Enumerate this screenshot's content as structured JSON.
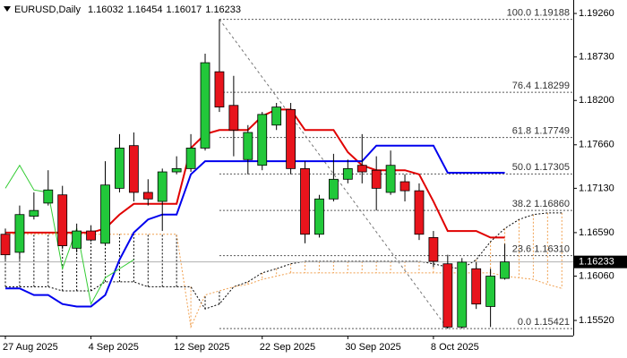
{
  "chart_data": {
    "type": "candlestick",
    "title": "EURUSD,Daily",
    "categories": [
      "27 Aug 2025",
      null,
      null,
      null,
      null,
      null,
      "4 Sep 2025",
      null,
      null,
      null,
      null,
      null,
      "12 Sep 2025",
      null,
      null,
      null,
      null,
      null,
      "22 Sep 2025",
      null,
      null,
      null,
      null,
      null,
      "30 Sep 2025",
      null,
      null,
      null,
      null,
      null,
      "8 Oct 2025",
      null,
      null,
      null,
      null,
      null,
      null,
      null,
      null,
      null
    ],
    "open": [
      1.1657,
      1.1635,
      1.1679,
      1.1695,
      1.1705,
      1.164,
      1.1661,
      1.1646,
      1.1713,
      1.1765,
      1.1708,
      1.1697,
      1.1733,
      1.1737,
      1.1762,
      1.1855,
      1.1814,
      1.1748,
      1.1741,
      1.179,
      1.1809,
      1.1737,
      1.1657,
      1.17,
      1.1724,
      1.1741,
      1.1735,
      1.1708,
      1.1721,
      1.171,
      1.1653,
      1.1621,
      1.1544,
      1.1615,
      1.1569,
      1.16032,
      null,
      null,
      null,
      null
    ],
    "high": [
      1.1664,
      1.1692,
      1.1708,
      1.1735,
      1.1716,
      1.167,
      1.1668,
      1.1746,
      1.1779,
      1.1781,
      1.1724,
      1.1737,
      1.1752,
      1.1779,
      1.1877,
      1.1919,
      1.185,
      1.179,
      1.1806,
      1.1817,
      1.1817,
      1.1746,
      1.1705,
      1.1755,
      1.1748,
      1.1779,
      1.1752,
      1.1759,
      1.173,
      1.1719,
      1.1661,
      1.1632,
      1.1628,
      1.1623,
      1.1615,
      1.16454,
      null,
      null,
      null,
      null
    ],
    "low": [
      1.1626,
      1.1626,
      1.1675,
      1.1692,
      1.1639,
      1.1635,
      1.1648,
      1.1643,
      1.1708,
      1.1697,
      1.1692,
      1.1661,
      1.173,
      1.1733,
      1.1759,
      1.1806,
      1.1752,
      1.173,
      1.1735,
      1.1784,
      1.173,
      1.1646,
      1.1653,
      1.1697,
      1.1719,
      1.1719,
      1.1686,
      1.1705,
      1.1697,
      1.165,
      1.1617,
      1.1542,
      1.1542,
      1.1566,
      1.1544,
      1.16017,
      null,
      null,
      null,
      null
    ],
    "close": [
      1.1632,
      1.1681,
      1.1686,
      1.1711,
      1.1643,
      1.1661,
      1.165,
      1.1717,
      1.1762,
      1.1708,
      1.17,
      1.1733,
      1.1737,
      1.1762,
      1.1866,
      1.1812,
      1.1784,
      1.1781,
      1.1803,
      1.1812,
      1.1737,
      1.1657,
      1.17,
      1.1724,
      1.1737,
      1.1733,
      1.1713,
      1.1741,
      1.171,
      1.1657,
      1.1624,
      1.1544,
      1.1623,
      1.1572,
      1.1606,
      1.16233,
      null,
      null,
      null,
      null
    ],
    "up_color": "#22c83a",
    "down_color": "#e8141c",
    "lines": [
      {
        "color": "#e00000",
        "width": 2,
        "values": [
          1.1659,
          1.1659,
          1.1659,
          1.1659,
          1.1659,
          1.1659,
          1.1659,
          1.1664,
          1.1681,
          1.1694,
          1.1694,
          1.1694,
          1.1694,
          1.1762,
          1.1779,
          1.1784,
          1.1784,
          1.1784,
          1.1801,
          1.1809,
          1.1809,
          1.1784,
          1.1784,
          1.1784,
          1.1757,
          1.1741,
          1.1735,
          1.1735,
          1.1735,
          1.173,
          1.1697,
          1.1661,
          1.1661,
          1.1661,
          1.1653,
          1.1653,
          null,
          null,
          null,
          null
        ]
      },
      {
        "color": "#0000ee",
        "width": 2,
        "values": [
          1.1591,
          1.1591,
          1.1583,
          1.1583,
          1.1572,
          1.1569,
          1.1569,
          1.1583,
          1.1626,
          1.1659,
          1.1675,
          1.1681,
          1.1681,
          1.173,
          1.1746,
          1.1746,
          1.1746,
          1.1746,
          1.1746,
          1.1746,
          1.1746,
          1.1746,
          1.1746,
          1.1746,
          1.1746,
          1.1746,
          1.1765,
          1.1765,
          1.1765,
          1.1765,
          1.1765,
          1.1732,
          1.1732,
          1.1732,
          1.1732,
          1.1732,
          null,
          null,
          null,
          null
        ]
      },
      {
        "color": "#33cc33",
        "width": 1,
        "values": [
          1.1713,
          1.1741,
          1.1711,
          1.1708,
          1.1615,
          1.1664,
          1.1572,
          1.1604,
          1.1615,
          1.1626,
          null,
          null,
          null,
          null,
          null,
          null,
          null,
          null,
          null,
          null,
          null,
          null,
          null,
          null,
          null,
          null,
          null,
          null,
          null,
          null,
          null,
          null,
          null,
          null,
          null,
          null,
          null,
          null,
          null,
          null
        ]
      }
    ],
    "cloud": [
      {
        "color": "#000000",
        "values": [
          1.1593,
          1.1593,
          1.1593,
          1.1593,
          1.1588,
          1.1588,
          1.1588,
          1.1599,
          1.1599,
          1.1599,
          1.1593,
          1.1593,
          1.1593,
          1.1593,
          1.1566,
          1.1572,
          1.1593,
          1.1599,
          1.161,
          1.1615,
          1.1621,
          1.1624,
          1.1624,
          1.1624,
          1.1624,
          1.1624,
          1.1624,
          1.1624,
          1.1624,
          1.1624,
          1.1621,
          1.1617,
          1.1615,
          1.1626,
          1.1648,
          1.1664,
          1.1675,
          1.1681,
          1.1683,
          1.1683
        ]
      },
      {
        "color": "#f0a050",
        "values": [
          1.1657,
          1.1657,
          1.1657,
          1.1657,
          1.1657,
          1.1657,
          1.1657,
          1.1657,
          1.1657,
          1.1657,
          1.1657,
          1.1657,
          1.1657,
          1.1544,
          1.1583,
          1.1588,
          1.1593,
          1.1596,
          1.1602,
          1.1606,
          1.161,
          1.161,
          1.161,
          1.161,
          1.161,
          1.161,
          1.161,
          1.161,
          1.161,
          1.161,
          1.161,
          1.161,
          1.161,
          1.161,
          1.161,
          1.1606,
          1.1604,
          1.1602,
          1.1596,
          1.1591
        ]
      }
    ],
    "fib_levels": [
      {
        "value": 1.19188,
        "label": "100.0 1.19188"
      },
      {
        "value": 1.18299,
        "label": "76.4 1.18299"
      },
      {
        "value": 1.17749,
        "label": "61.8 1.17749"
      },
      {
        "value": 1.17305,
        "label": "50.0 1.17305"
      },
      {
        "value": 1.1686,
        "label": "38.2 1.16860"
      },
      {
        "value": 1.1631,
        "label": "23.6 1.16310"
      },
      {
        "value": 1.15421,
        "label": "0.0 1.15421"
      }
    ],
    "last_price": 1.16233,
    "ylim": [
      1.15335,
      1.19424
    ],
    "yticks": [
      {
        "value": 1.1926,
        "label": "1.19260"
      },
      {
        "value": 1.1873,
        "label": "1.18730"
      },
      {
        "value": 1.182,
        "label": "1.18200"
      },
      {
        "value": 1.1766,
        "label": "1.17660"
      },
      {
        "value": 1.1713,
        "label": "1.17130"
      },
      {
        "value": 1.1659,
        "label": "1.16590"
      },
      {
        "value": 1.1606,
        "label": "1.16060"
      },
      {
        "value": 1.1552,
        "label": "1.15520"
      }
    ]
  }
}
